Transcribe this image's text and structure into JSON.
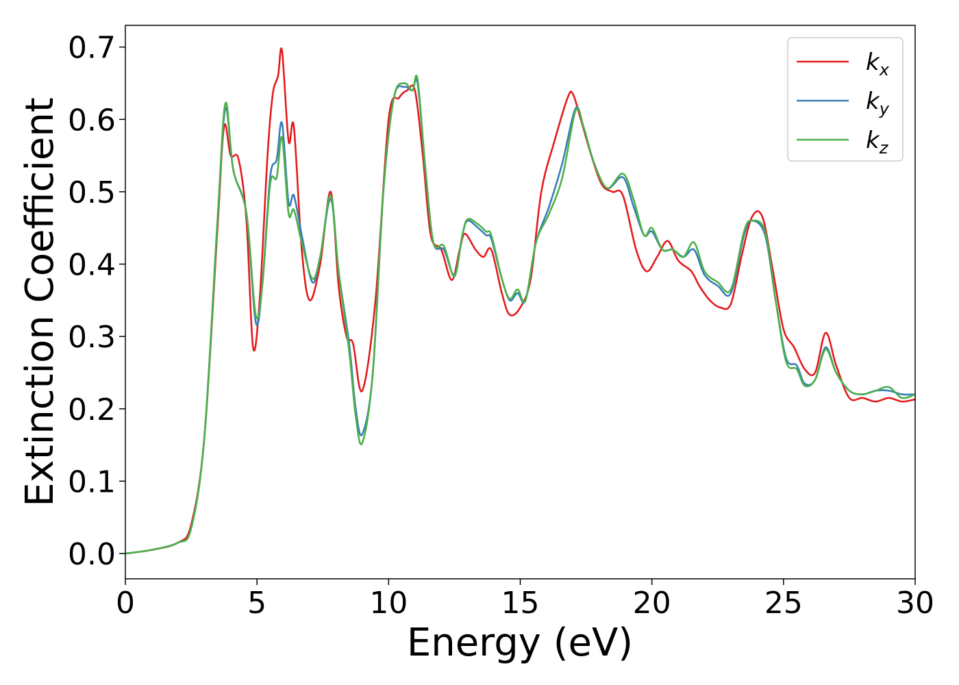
{
  "chart_data": {
    "type": "line",
    "title": "",
    "xlabel": "Energy (eV)",
    "ylabel": "Extinction Coefficient",
    "xlim": [
      0,
      30
    ],
    "ylim": [
      -0.035,
      0.73
    ],
    "xticks": [
      0,
      5,
      10,
      15,
      20,
      25,
      30
    ],
    "yticks": [
      0.0,
      0.1,
      0.2,
      0.3,
      0.4,
      0.5,
      0.6,
      0.7
    ],
    "xtick_labels": [
      "0",
      "5",
      "10",
      "15",
      "20",
      "25",
      "30"
    ],
    "ytick_labels": [
      "0.0",
      "0.1",
      "0.2",
      "0.3",
      "0.4",
      "0.5",
      "0.6",
      "0.7"
    ],
    "grid": false,
    "legend_position": "top-right",
    "series": [
      {
        "name": "k",
        "subscript": "x",
        "color": "#e41a1c",
        "points": [
          [
            0,
            0
          ],
          [
            1,
            0.005
          ],
          [
            2,
            0.015
          ],
          [
            2.5,
            0.04
          ],
          [
            3,
            0.16
          ],
          [
            3.5,
            0.45
          ],
          [
            3.75,
            0.59
          ],
          [
            4,
            0.55
          ],
          [
            4.3,
            0.545
          ],
          [
            4.6,
            0.46
          ],
          [
            4.85,
            0.285
          ],
          [
            5.1,
            0.35
          ],
          [
            5.4,
            0.55
          ],
          [
            5.6,
            0.635
          ],
          [
            5.8,
            0.66
          ],
          [
            5.95,
            0.695
          ],
          [
            6.2,
            0.57
          ],
          [
            6.4,
            0.59
          ],
          [
            6.7,
            0.42
          ],
          [
            7,
            0.35
          ],
          [
            7.4,
            0.4
          ],
          [
            7.8,
            0.5
          ],
          [
            8.1,
            0.37
          ],
          [
            8.4,
            0.3
          ],
          [
            8.65,
            0.29
          ],
          [
            9,
            0.225
          ],
          [
            9.5,
            0.35
          ],
          [
            10,
            0.6
          ],
          [
            10.4,
            0.63
          ],
          [
            10.7,
            0.64
          ],
          [
            11,
            0.64
          ],
          [
            11.3,
            0.55
          ],
          [
            11.6,
            0.44
          ],
          [
            12,
            0.42
          ],
          [
            12.4,
            0.378
          ],
          [
            12.7,
            0.42
          ],
          [
            12.9,
            0.442
          ],
          [
            13.3,
            0.42
          ],
          [
            13.6,
            0.41
          ],
          [
            13.9,
            0.42
          ],
          [
            14.3,
            0.36
          ],
          [
            14.6,
            0.33
          ],
          [
            15,
            0.34
          ],
          [
            15.4,
            0.38
          ],
          [
            15.8,
            0.5
          ],
          [
            16.3,
            0.57
          ],
          [
            16.8,
            0.63
          ],
          [
            17,
            0.635
          ],
          [
            17.3,
            0.6
          ],
          [
            17.7,
            0.55
          ],
          [
            18.1,
            0.51
          ],
          [
            18.5,
            0.5
          ],
          [
            18.9,
            0.495
          ],
          [
            19.4,
            0.42
          ],
          [
            19.8,
            0.39
          ],
          [
            20.2,
            0.41
          ],
          [
            20.6,
            0.432
          ],
          [
            21,
            0.405
          ],
          [
            21.5,
            0.39
          ],
          [
            21.8,
            0.37
          ],
          [
            22.2,
            0.35
          ],
          [
            22.6,
            0.34
          ],
          [
            23,
            0.345
          ],
          [
            23.4,
            0.41
          ],
          [
            23.8,
            0.465
          ],
          [
            24.2,
            0.465
          ],
          [
            24.6,
            0.39
          ],
          [
            25,
            0.31
          ],
          [
            25.4,
            0.285
          ],
          [
            25.8,
            0.255
          ],
          [
            26.2,
            0.25
          ],
          [
            26.6,
            0.305
          ],
          [
            27,
            0.26
          ],
          [
            27.5,
            0.215
          ],
          [
            28,
            0.215
          ],
          [
            28.5,
            0.21
          ],
          [
            29,
            0.215
          ],
          [
            29.5,
            0.21
          ],
          [
            30,
            0.213
          ]
        ]
      },
      {
        "name": "k",
        "subscript": "y",
        "color": "#377eb8",
        "points": [
          [
            0,
            0
          ],
          [
            1,
            0.005
          ],
          [
            2,
            0.015
          ],
          [
            2.5,
            0.035
          ],
          [
            3,
            0.16
          ],
          [
            3.5,
            0.46
          ],
          [
            3.8,
            0.615
          ],
          [
            4.1,
            0.53
          ],
          [
            4.6,
            0.47
          ],
          [
            4.95,
            0.32
          ],
          [
            5.2,
            0.37
          ],
          [
            5.5,
            0.52
          ],
          [
            5.75,
            0.545
          ],
          [
            5.95,
            0.595
          ],
          [
            6.2,
            0.485
          ],
          [
            6.4,
            0.495
          ],
          [
            6.7,
            0.44
          ],
          [
            7.1,
            0.375
          ],
          [
            7.4,
            0.41
          ],
          [
            7.8,
            0.49
          ],
          [
            8.1,
            0.39
          ],
          [
            8.5,
            0.29
          ],
          [
            8.75,
            0.2
          ],
          [
            9,
            0.165
          ],
          [
            9.4,
            0.25
          ],
          [
            9.8,
            0.5
          ],
          [
            10.2,
            0.63
          ],
          [
            10.6,
            0.645
          ],
          [
            10.9,
            0.64
          ],
          [
            11.1,
            0.65
          ],
          [
            11.4,
            0.53
          ],
          [
            11.7,
            0.43
          ],
          [
            12.1,
            0.42
          ],
          [
            12.5,
            0.385
          ],
          [
            12.8,
            0.44
          ],
          [
            13,
            0.46
          ],
          [
            13.4,
            0.45
          ],
          [
            13.7,
            0.44
          ],
          [
            13.9,
            0.435
          ],
          [
            14.3,
            0.38
          ],
          [
            14.6,
            0.35
          ],
          [
            14.9,
            0.36
          ],
          [
            15.2,
            0.35
          ],
          [
            15.6,
            0.43
          ],
          [
            16.1,
            0.48
          ],
          [
            16.6,
            0.54
          ],
          [
            17.1,
            0.615
          ],
          [
            17.4,
            0.59
          ],
          [
            17.8,
            0.54
          ],
          [
            18.3,
            0.505
          ],
          [
            18.9,
            0.52
          ],
          [
            19.3,
            0.48
          ],
          [
            19.7,
            0.44
          ],
          [
            20,
            0.445
          ],
          [
            20.4,
            0.42
          ],
          [
            20.8,
            0.42
          ],
          [
            21.2,
            0.41
          ],
          [
            21.6,
            0.42
          ],
          [
            22,
            0.385
          ],
          [
            22.5,
            0.37
          ],
          [
            23,
            0.36
          ],
          [
            23.5,
            0.44
          ],
          [
            23.8,
            0.46
          ],
          [
            24.3,
            0.44
          ],
          [
            24.7,
            0.35
          ],
          [
            25.1,
            0.27
          ],
          [
            25.5,
            0.26
          ],
          [
            25.8,
            0.235
          ],
          [
            26.2,
            0.24
          ],
          [
            26.6,
            0.285
          ],
          [
            27,
            0.25
          ],
          [
            27.5,
            0.225
          ],
          [
            28,
            0.22
          ],
          [
            28.5,
            0.225
          ],
          [
            29,
            0.225
          ],
          [
            29.5,
            0.22
          ],
          [
            30,
            0.22
          ]
        ]
      },
      {
        "name": "k",
        "subscript": "z",
        "color": "#4daf4a",
        "points": [
          [
            0,
            0
          ],
          [
            1,
            0.005
          ],
          [
            2,
            0.015
          ],
          [
            2.5,
            0.035
          ],
          [
            3,
            0.16
          ],
          [
            3.5,
            0.46
          ],
          [
            3.8,
            0.622
          ],
          [
            4.1,
            0.53
          ],
          [
            4.6,
            0.47
          ],
          [
            4.95,
            0.33
          ],
          [
            5.2,
            0.37
          ],
          [
            5.5,
            0.51
          ],
          [
            5.75,
            0.52
          ],
          [
            5.95,
            0.575
          ],
          [
            6.2,
            0.47
          ],
          [
            6.4,
            0.475
          ],
          [
            6.7,
            0.43
          ],
          [
            7.1,
            0.38
          ],
          [
            7.4,
            0.41
          ],
          [
            7.8,
            0.495
          ],
          [
            8.1,
            0.39
          ],
          [
            8.5,
            0.28
          ],
          [
            8.75,
            0.19
          ],
          [
            9,
            0.153
          ],
          [
            9.4,
            0.25
          ],
          [
            9.8,
            0.5
          ],
          [
            10.2,
            0.63
          ],
          [
            10.6,
            0.65
          ],
          [
            10.9,
            0.64
          ],
          [
            11.1,
            0.655
          ],
          [
            11.4,
            0.53
          ],
          [
            11.7,
            0.43
          ],
          [
            12.1,
            0.425
          ],
          [
            12.5,
            0.383
          ],
          [
            12.8,
            0.44
          ],
          [
            13,
            0.462
          ],
          [
            13.4,
            0.455
          ],
          [
            13.7,
            0.445
          ],
          [
            13.9,
            0.44
          ],
          [
            14.3,
            0.38
          ],
          [
            14.6,
            0.352
          ],
          [
            14.9,
            0.365
          ],
          [
            15.2,
            0.35
          ],
          [
            15.6,
            0.43
          ],
          [
            16.1,
            0.47
          ],
          [
            16.6,
            0.52
          ],
          [
            17.1,
            0.612
          ],
          [
            17.4,
            0.59
          ],
          [
            17.8,
            0.54
          ],
          [
            18.3,
            0.505
          ],
          [
            18.9,
            0.525
          ],
          [
            19.3,
            0.49
          ],
          [
            19.7,
            0.44
          ],
          [
            20,
            0.45
          ],
          [
            20.4,
            0.42
          ],
          [
            20.8,
            0.42
          ],
          [
            21.2,
            0.41
          ],
          [
            21.6,
            0.43
          ],
          [
            22,
            0.39
          ],
          [
            22.5,
            0.375
          ],
          [
            23,
            0.365
          ],
          [
            23.5,
            0.445
          ],
          [
            23.8,
            0.46
          ],
          [
            24.3,
            0.445
          ],
          [
            24.7,
            0.35
          ],
          [
            25.1,
            0.265
          ],
          [
            25.5,
            0.255
          ],
          [
            25.8,
            0.232
          ],
          [
            26.2,
            0.24
          ],
          [
            26.6,
            0.282
          ],
          [
            27,
            0.25
          ],
          [
            27.5,
            0.225
          ],
          [
            28,
            0.22
          ],
          [
            28.5,
            0.225
          ],
          [
            29,
            0.23
          ],
          [
            29.5,
            0.215
          ],
          [
            30,
            0.22
          ]
        ]
      }
    ]
  }
}
